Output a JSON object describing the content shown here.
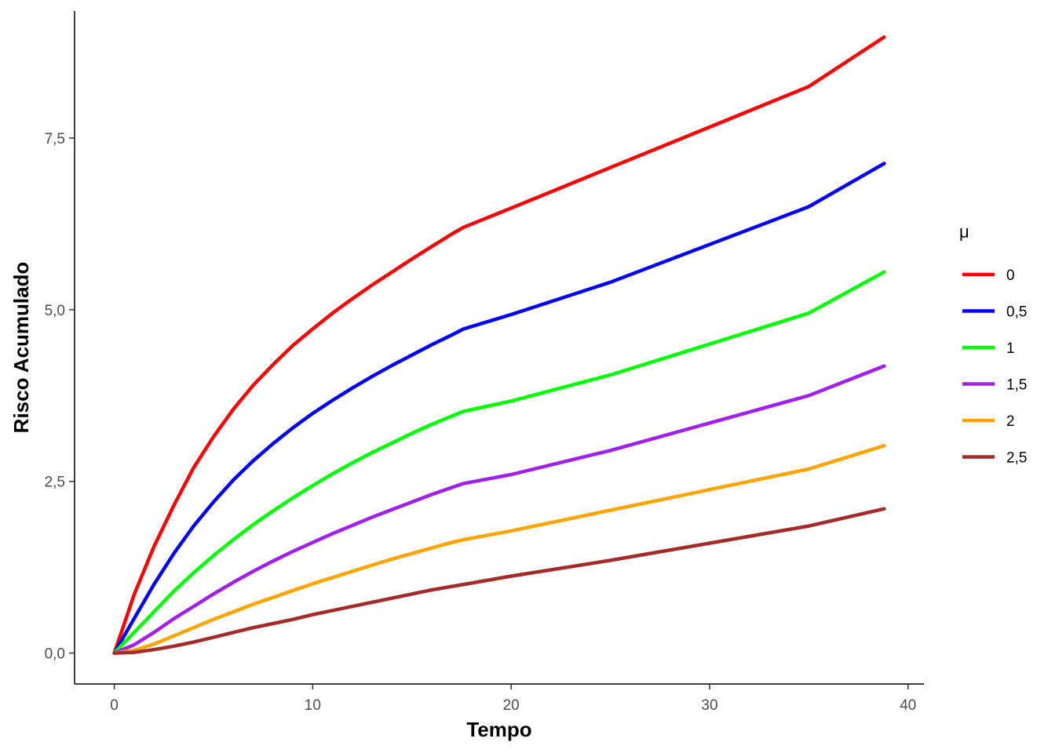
{
  "chart_data": {
    "type": "line",
    "title": "",
    "xlabel": "Tempo",
    "ylabel": "Risco Acumulado",
    "xlim": [
      -2,
      40.8
    ],
    "ylim": [
      -0.45,
      9.35
    ],
    "x_ticks": [
      0,
      10,
      20,
      30,
      40
    ],
    "x_tick_labels": [
      "0",
      "10",
      "20",
      "30",
      "40"
    ],
    "y_ticks": [
      0,
      2.5,
      5,
      7.5
    ],
    "y_tick_labels": [
      "0,0",
      "2,5",
      "5,0",
      "7,5"
    ],
    "grid": false,
    "legend": {
      "title": "μ",
      "position": "right"
    },
    "x": [
      0,
      1,
      2,
      3,
      4,
      5,
      6,
      7,
      8,
      9,
      10,
      11,
      12,
      13,
      14,
      15,
      16,
      17,
      17.6,
      20,
      25,
      30,
      35,
      38.8
    ],
    "series": [
      {
        "name": "0",
        "color": "#ff0000",
        "values": [
          0,
          0.85,
          1.55,
          2.15,
          2.7,
          3.15,
          3.55,
          3.9,
          4.2,
          4.48,
          4.72,
          4.95,
          5.16,
          5.36,
          5.55,
          5.74,
          5.92,
          6.1,
          6.2,
          6.48,
          7.07,
          7.66,
          8.25,
          8.97
        ]
      },
      {
        "name": "0,5",
        "color": "#0000ff",
        "values": [
          0,
          0.5,
          1.0,
          1.45,
          1.85,
          2.2,
          2.52,
          2.8,
          3.05,
          3.28,
          3.49,
          3.68,
          3.86,
          4.03,
          4.19,
          4.34,
          4.49,
          4.63,
          4.72,
          4.93,
          5.4,
          5.95,
          6.5,
          7.13
        ]
      },
      {
        "name": "1",
        "color": "#00ff00",
        "values": [
          0,
          0.3,
          0.6,
          0.9,
          1.17,
          1.42,
          1.65,
          1.87,
          2.07,
          2.26,
          2.44,
          2.61,
          2.77,
          2.92,
          3.06,
          3.2,
          3.33,
          3.45,
          3.52,
          3.67,
          4.05,
          4.5,
          4.95,
          5.55
        ]
      },
      {
        "name": "1,5",
        "color": "#a020f0",
        "values": [
          0,
          0.12,
          0.3,
          0.5,
          0.68,
          0.86,
          1.03,
          1.19,
          1.34,
          1.48,
          1.61,
          1.74,
          1.86,
          1.98,
          2.09,
          2.2,
          2.31,
          2.41,
          2.47,
          2.6,
          2.95,
          3.35,
          3.75,
          4.18
        ]
      },
      {
        "name": "2",
        "color": "#ffa500",
        "values": [
          0,
          0.04,
          0.13,
          0.25,
          0.37,
          0.49,
          0.6,
          0.71,
          0.81,
          0.91,
          1.01,
          1.1,
          1.19,
          1.28,
          1.37,
          1.45,
          1.53,
          1.61,
          1.65,
          1.78,
          2.08,
          2.38,
          2.68,
          3.02
        ]
      },
      {
        "name": "2,5",
        "color": "#a52a2a",
        "values": [
          0,
          0.01,
          0.05,
          0.1,
          0.16,
          0.23,
          0.3,
          0.37,
          0.43,
          0.49,
          0.56,
          0.62,
          0.68,
          0.74,
          0.8,
          0.86,
          0.92,
          0.97,
          1.0,
          1.12,
          1.35,
          1.6,
          1.85,
          2.1
        ]
      }
    ]
  }
}
